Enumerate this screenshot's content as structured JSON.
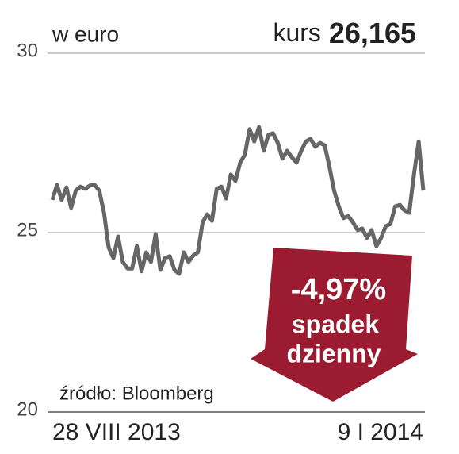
{
  "chart_data": {
    "type": "line",
    "unit_label": "w euro",
    "price_label": "kurs",
    "price_value": "26,165",
    "annotation": {
      "change": "-4,97%",
      "line1": "spadek",
      "line2": "dzienny"
    },
    "source": "źródło: Bloomberg",
    "categories": [
      "28 VIII 2013",
      null,
      null,
      null,
      null,
      null,
      null,
      null,
      null,
      null,
      null,
      null,
      null,
      null,
      null,
      null,
      null,
      null,
      null,
      null,
      null,
      null,
      null,
      null,
      null,
      null,
      null,
      null,
      null,
      null,
      null,
      null,
      null,
      null,
      null,
      null,
      null,
      null,
      null,
      null,
      null,
      null,
      null,
      null,
      null,
      null,
      null,
      null,
      null,
      null,
      null,
      null,
      null,
      null,
      null,
      null,
      null,
      null,
      null,
      null,
      null,
      null,
      null,
      null,
      null,
      null,
      null,
      null,
      null,
      null,
      null,
      null,
      null,
      null,
      null,
      null,
      null,
      null,
      null,
      "9 I 2014"
    ],
    "series": [
      {
        "name": "kurs",
        "color": "#666666",
        "values": [
          25.91,
          26.33,
          25.91,
          26.26,
          25.69,
          26.17,
          26.28,
          26.22,
          26.31,
          26.33,
          26.17,
          25.55,
          24.58,
          24.29,
          24.89,
          24.18,
          24.0,
          24.0,
          24.62,
          23.92,
          24.45,
          24.18,
          24.96,
          23.96,
          24.29,
          24.34,
          23.96,
          23.85,
          24.45,
          24.18,
          24.36,
          24.45,
          25.29,
          25.51,
          25.33,
          26.22,
          26.28,
          25.95,
          26.62,
          26.44,
          26.95,
          27.17,
          27.88,
          27.54,
          27.94,
          27.28,
          27.72,
          27.77,
          27.5,
          27.06,
          27.28,
          27.1,
          26.95,
          27.28,
          27.54,
          27.61,
          27.39,
          27.5,
          27.43,
          26.84,
          26.17,
          25.73,
          25.4,
          25.46,
          25.29,
          25.07,
          25.11,
          24.85,
          25.07,
          24.62,
          24.85,
          25.18,
          25.24,
          25.73,
          25.77,
          25.62,
          25.55,
          26.62,
          27.54,
          26.17
        ]
      }
    ],
    "ylim": [
      20,
      30
    ],
    "yticks": [
      20,
      25,
      30
    ],
    "grid": true
  }
}
